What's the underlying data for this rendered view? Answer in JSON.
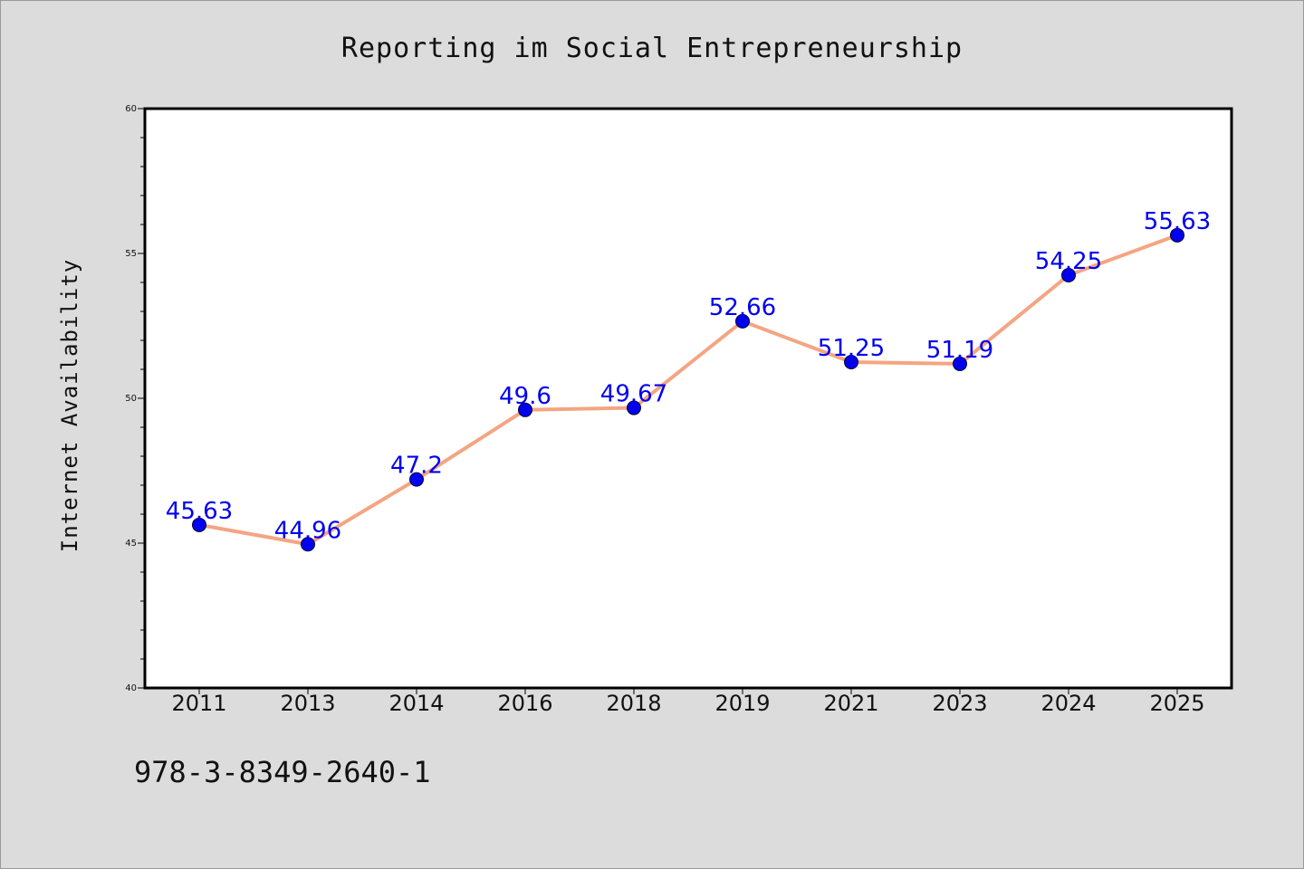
{
  "chart_data": {
    "type": "line",
    "title": "Reporting im Social Entrepreneurship",
    "ylabel": "Internet Availability",
    "xlabel": "",
    "categories": [
      "2011",
      "2013",
      "2014",
      "2016",
      "2018",
      "2019",
      "2021",
      "2023",
      "2024",
      "2025"
    ],
    "series": [
      {
        "values": [
          45.63,
          44.96,
          47.2,
          49.6,
          49.67,
          52.66,
          51.25,
          51.19,
          54.25,
          55.63
        ],
        "data_labels": [
          "45.63",
          "44.96",
          "47.2",
          "49.6",
          "49.67",
          "52.66",
          "51.25",
          "51.19",
          "54.25",
          "55.63"
        ],
        "line_color": "#f4a582",
        "marker_color": "#0000ee"
      }
    ],
    "ylim": [
      40,
      60
    ],
    "yticks": [
      "40",
      "45",
      "50",
      "55",
      "60"
    ],
    "grid": false,
    "legend": "none"
  },
  "footnote": "978-3-8349-2640-1"
}
